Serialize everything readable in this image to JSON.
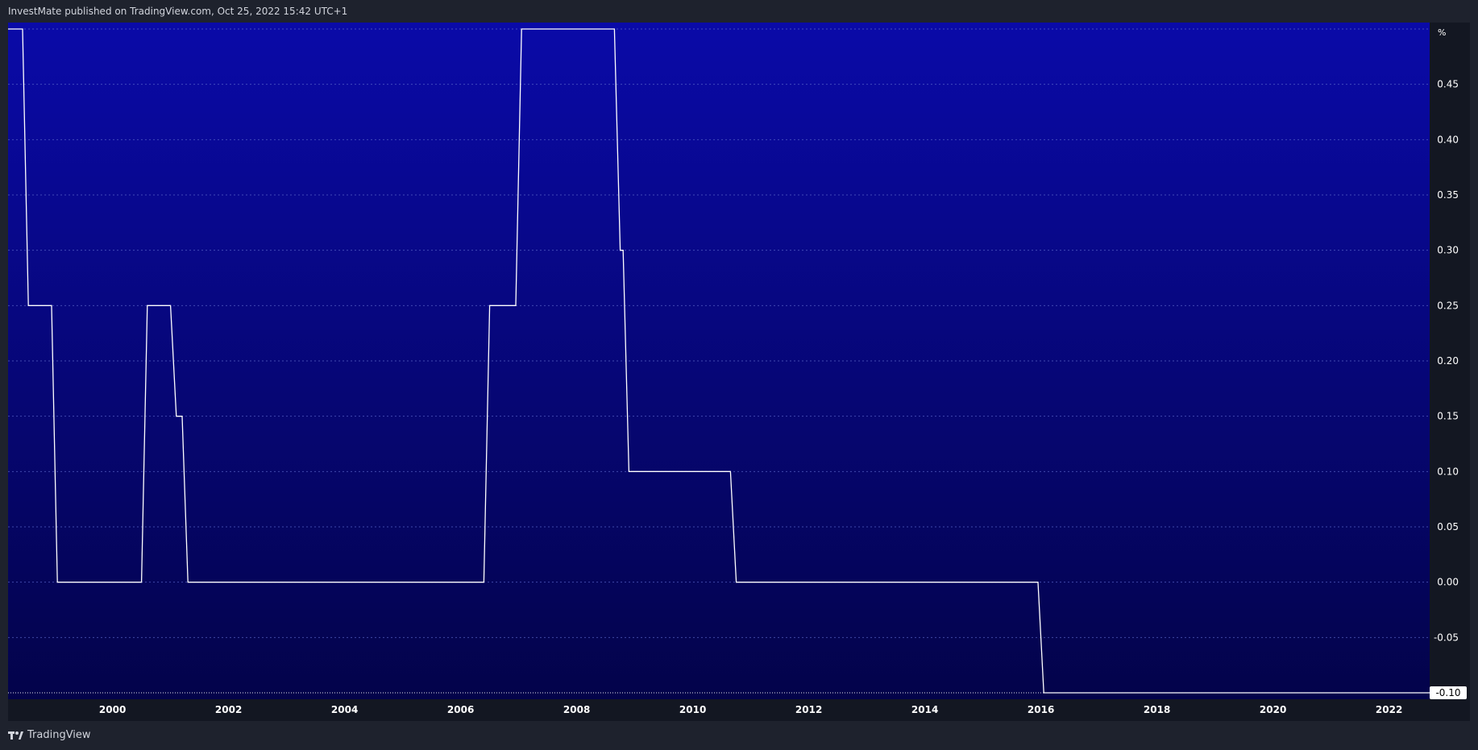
{
  "header": {
    "publish_text": "InvestMate published on TradingView.com, Oct 25, 2022 15:42 UTC+1"
  },
  "footer": {
    "brand": "TradingView"
  },
  "colors": {
    "plot_top": "#0a0aa8",
    "plot_bottom": "#03034a",
    "line": "#ffffff",
    "text": "#d1d4dc",
    "grid": "#5a66c8",
    "last_value_label_bg": "#ffffff",
    "last_value_label_text": "#000000"
  },
  "icons": {
    "brand_logo": "tradingview-logo-icon"
  },
  "chart_data": {
    "type": "line",
    "line_shape": "step",
    "title": "",
    "xlabel": "",
    "ylabel": "",
    "unit_label": "%",
    "xlim": [
      1998.2,
      2022.7
    ],
    "ylim": [
      -0.1,
      0.5
    ],
    "x_ticks": [
      "2000",
      "2002",
      "2004",
      "2006",
      "2008",
      "2010",
      "2012",
      "2014",
      "2016",
      "2018",
      "2020",
      "2022"
    ],
    "y_ticks": [
      "0.45",
      "0.40",
      "0.35",
      "0.30",
      "0.25",
      "0.20",
      "0.15",
      "0.10",
      "0.05",
      "0.00",
      "-0.05"
    ],
    "last_value_label": "-0.10",
    "grid": true,
    "legend": "none",
    "series": [
      {
        "x": [
          1998.2,
          1998.45,
          1998.55,
          1998.95,
          1999.05,
          2000.5,
          2000.6,
          2001.0,
          2001.1,
          2001.2,
          2001.3,
          2006.4,
          2006.5,
          2006.95,
          2007.05,
          2008.65,
          2008.75,
          2008.8,
          2008.9,
          2010.65,
          2010.75,
          2015.95,
          2016.05,
          2022.7
        ],
        "y": [
          0.5,
          0.5,
          0.25,
          0.25,
          0.0,
          0.0,
          0.25,
          0.25,
          0.15,
          0.15,
          0.0,
          0.0,
          0.25,
          0.25,
          0.5,
          0.5,
          0.3,
          0.3,
          0.1,
          0.1,
          0.0,
          0.0,
          -0.1,
          -0.1
        ]
      }
    ]
  }
}
